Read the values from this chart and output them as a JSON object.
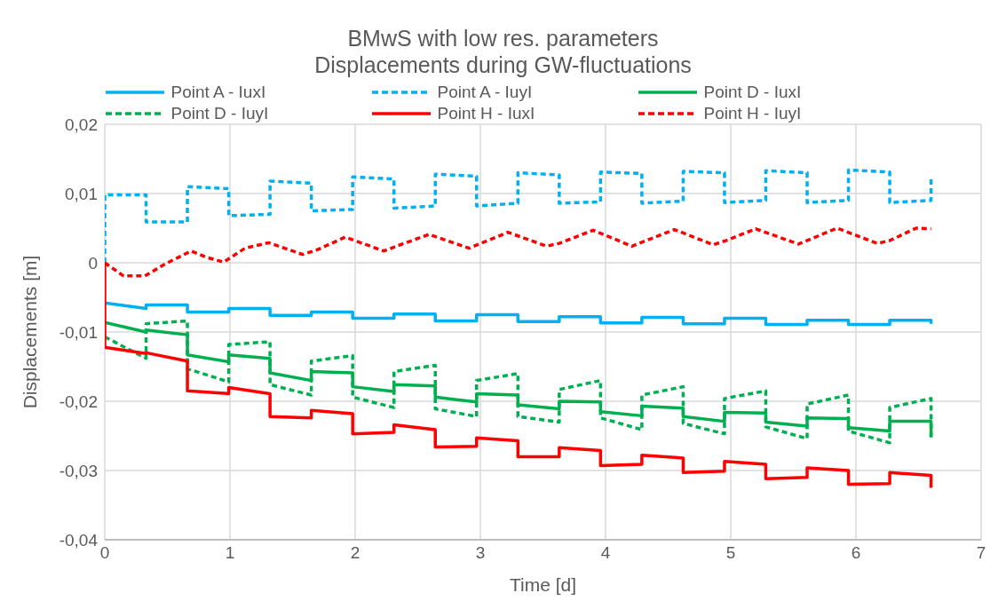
{
  "chart_data": {
    "type": "line",
    "title": "BMwS with low res. parameters",
    "subtitle": "Displacements during GW-fluctuations",
    "xlabel": "Time [d]",
    "ylabel": "Displacements [m]",
    "xlim": [
      0,
      7
    ],
    "xticks": [
      0,
      1,
      2,
      3,
      4,
      5,
      6,
      7
    ],
    "ylim": [
      -0.04,
      0.02
    ],
    "yticks": [
      {
        "value": -0.04,
        "label": "-0,04"
      },
      {
        "value": -0.03,
        "label": "-0,03"
      },
      {
        "value": -0.02,
        "label": "-0,02"
      },
      {
        "value": -0.01,
        "label": "-0,01"
      },
      {
        "value": 0,
        "label": "0"
      },
      {
        "value": 0.01,
        "label": "0,01"
      },
      {
        "value": 0.02,
        "label": "0,02"
      }
    ],
    "grid": true,
    "legend": "top",
    "marker": "none",
    "series": [
      {
        "name": "Point A - IuxI",
        "color": "#00b0f0",
        "line_style": "solid",
        "x": [
          0,
          0.33,
          0.33,
          0.66,
          0.66,
          0.99,
          0.99,
          1.32,
          1.32,
          1.65,
          1.65,
          1.98,
          1.98,
          2.31,
          2.31,
          2.64,
          2.64,
          2.97,
          2.97,
          3.3,
          3.3,
          3.63,
          3.63,
          3.96,
          3.96,
          4.29,
          4.29,
          4.62,
          4.62,
          4.95,
          4.95,
          5.28,
          5.28,
          5.61,
          5.61,
          5.94,
          5.94,
          6.27,
          6.27,
          6.6,
          6.6
        ],
        "values": [
          -0.0058,
          -0.0066,
          -0.0061,
          -0.0061,
          -0.0071,
          -0.0071,
          -0.0066,
          -0.0066,
          -0.0076,
          -0.0076,
          -0.0071,
          -0.0071,
          -0.008,
          -0.008,
          -0.0074,
          -0.0074,
          -0.0084,
          -0.0084,
          -0.0075,
          -0.0075,
          -0.0085,
          -0.0085,
          -0.0078,
          -0.0078,
          -0.0087,
          -0.0087,
          -0.0079,
          -0.0079,
          -0.0088,
          -0.0088,
          -0.008,
          -0.008,
          -0.0089,
          -0.0089,
          -0.0083,
          -0.0083,
          -0.0089,
          -0.0089,
          -0.0083,
          -0.0083,
          -0.0088
        ]
      },
      {
        "name": "Point A - IuyI",
        "color": "#00b0f0",
        "line_style": "dashed",
        "x": [
          0,
          0,
          0.33,
          0.33,
          0.66,
          0.66,
          0.99,
          0.99,
          1.32,
          1.32,
          1.65,
          1.65,
          1.98,
          1.98,
          2.31,
          2.31,
          2.64,
          2.64,
          2.97,
          2.97,
          3.3,
          3.3,
          3.63,
          3.63,
          3.96,
          3.96,
          4.29,
          4.29,
          4.62,
          4.62,
          4.95,
          4.95,
          5.28,
          5.28,
          5.61,
          5.61,
          5.94,
          5.94,
          6.27,
          6.27,
          6.6,
          6.6
        ],
        "values": [
          0,
          0.0098,
          0.0098,
          0.0059,
          0.0059,
          0.011,
          0.0107,
          0.0068,
          0.007,
          0.0118,
          0.0115,
          0.0075,
          0.0077,
          0.0124,
          0.0121,
          0.0079,
          0.0082,
          0.0128,
          0.0125,
          0.0082,
          0.0086,
          0.013,
          0.0127,
          0.0086,
          0.0088,
          0.0131,
          0.0129,
          0.0086,
          0.0089,
          0.0132,
          0.013,
          0.0087,
          0.009,
          0.0133,
          0.013,
          0.0087,
          0.009,
          0.0134,
          0.0131,
          0.0087,
          0.009,
          0.0125
        ]
      },
      {
        "name": "Point D - IuxI",
        "color": "#00b050",
        "line_style": "solid",
        "x": [
          0,
          0.33,
          0.33,
          0.66,
          0.66,
          0.99,
          0.99,
          1.32,
          1.32,
          1.65,
          1.65,
          1.98,
          1.98,
          2.31,
          2.31,
          2.64,
          2.64,
          2.97,
          2.97,
          3.3,
          3.3,
          3.63,
          3.63,
          3.96,
          3.96,
          4.29,
          4.29,
          4.62,
          4.62,
          4.95,
          4.95,
          5.28,
          5.28,
          5.61,
          5.61,
          5.94,
          5.94,
          6.27,
          6.27,
          6.6,
          6.6
        ],
        "values": [
          -0.0086,
          -0.01,
          -0.0097,
          -0.0104,
          -0.0133,
          -0.0143,
          -0.0133,
          -0.0138,
          -0.0159,
          -0.017,
          -0.0157,
          -0.0159,
          -0.0179,
          -0.0186,
          -0.0176,
          -0.0178,
          -0.0194,
          -0.0201,
          -0.0189,
          -0.0191,
          -0.0205,
          -0.0211,
          -0.02,
          -0.0201,
          -0.0215,
          -0.0221,
          -0.0207,
          -0.021,
          -0.0222,
          -0.0229,
          -0.0216,
          -0.0217,
          -0.023,
          -0.0236,
          -0.0224,
          -0.0225,
          -0.0238,
          -0.0243,
          -0.0229,
          -0.0229,
          -0.0252
        ]
      },
      {
        "name": "Point D - IuyI",
        "color": "#00b050",
        "line_style": "dashed",
        "x": [
          0,
          0.33,
          0.33,
          0.66,
          0.66,
          0.99,
          0.99,
          1.32,
          1.32,
          1.65,
          1.65,
          1.98,
          1.98,
          2.31,
          2.31,
          2.64,
          2.64,
          2.97,
          2.97,
          3.3,
          3.3,
          3.63,
          3.63,
          3.96,
          3.96,
          4.29,
          4.29,
          4.62,
          4.62,
          4.95,
          4.95,
          5.28,
          5.28,
          5.61,
          5.61,
          5.94,
          5.94,
          6.27,
          6.27,
          6.6,
          6.6
        ],
        "values": [
          -0.0107,
          -0.0138,
          -0.0088,
          -0.0084,
          -0.0153,
          -0.0172,
          -0.0118,
          -0.0114,
          -0.0176,
          -0.0191,
          -0.0142,
          -0.0134,
          -0.0194,
          -0.0209,
          -0.0157,
          -0.0148,
          -0.0211,
          -0.0222,
          -0.017,
          -0.016,
          -0.0222,
          -0.023,
          -0.0183,
          -0.017,
          -0.0224,
          -0.0241,
          -0.0191,
          -0.0179,
          -0.0232,
          -0.0247,
          -0.0196,
          -0.0185,
          -0.0237,
          -0.0254,
          -0.0204,
          -0.0191,
          -0.0243,
          -0.026,
          -0.0209,
          -0.0196,
          -0.0252
        ]
      },
      {
        "name": "Point H - IuxI",
        "color": "#ff0000",
        "line_style": "solid",
        "x": [
          0,
          0,
          0.33,
          0.33,
          0.66,
          0.66,
          0.99,
          0.99,
          1.32,
          1.32,
          1.65,
          1.65,
          1.98,
          1.98,
          2.31,
          2.31,
          2.64,
          2.64,
          2.97,
          2.97,
          3.3,
          3.3,
          3.63,
          3.63,
          3.96,
          3.96,
          4.29,
          4.29,
          4.62,
          4.62,
          4.95,
          4.95,
          5.28,
          5.28,
          5.61,
          5.61,
          5.94,
          5.94,
          6.27,
          6.27,
          6.6,
          6.6
        ],
        "values": [
          0,
          -0.0122,
          -0.0131,
          -0.013,
          -0.0142,
          -0.0185,
          -0.0189,
          -0.018,
          -0.0189,
          -0.0222,
          -0.0224,
          -0.0213,
          -0.0218,
          -0.0247,
          -0.0245,
          -0.0234,
          -0.0241,
          -0.0266,
          -0.0265,
          -0.0253,
          -0.0257,
          -0.028,
          -0.028,
          -0.0267,
          -0.0271,
          -0.0293,
          -0.0291,
          -0.0278,
          -0.0282,
          -0.0303,
          -0.0301,
          -0.0287,
          -0.0291,
          -0.0312,
          -0.031,
          -0.0296,
          -0.03,
          -0.032,
          -0.0319,
          -0.0303,
          -0.0307,
          -0.0325
        ]
      },
      {
        "name": "Point H - IuyI",
        "color": "#ff0000",
        "line_style": "dashed",
        "x": [
          0,
          0.15,
          0.32,
          0.49,
          0.69,
          0.81,
          0.95,
          1.12,
          1.31,
          1.58,
          1.7,
          1.92,
          2.23,
          2.33,
          2.59,
          2.91,
          3.22,
          3.53,
          3.63,
          3.9,
          4.21,
          4.55,
          4.86,
          4.96,
          5.2,
          5.54,
          5.85,
          6.17,
          6.27,
          6.48,
          6.6
        ],
        "values": [
          0,
          -0.0019,
          -0.0019,
          -0.0001,
          0.0017,
          0.0008,
          0.0001,
          0.0021,
          0.0029,
          0.0012,
          0.0019,
          0.0037,
          0.0017,
          0.0024,
          0.0041,
          0.0021,
          0.0044,
          0.0024,
          0.0028,
          0.0047,
          0.0024,
          0.0048,
          0.0026,
          0.0032,
          0.0049,
          0.0027,
          0.005,
          0.0028,
          0.0032,
          0.005,
          0.0049
        ]
      }
    ]
  }
}
